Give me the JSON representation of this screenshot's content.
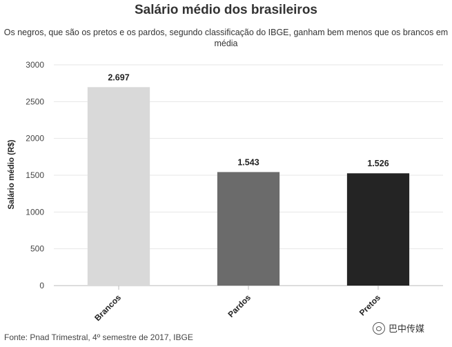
{
  "chart_data": {
    "type": "bar",
    "title": "Salário médio dos brasileiros",
    "subtitle_lines": [
      "Os negros, que são os pretos e os pardos, segundo classificação do IBGE, ganham bem menos que os brancos em",
      "média"
    ],
    "categories": [
      "Brancos",
      "Pardos",
      "Pretos"
    ],
    "values": [
      2697,
      1543,
      1526
    ],
    "value_labels": [
      "2.697",
      "1.543",
      "1.526"
    ],
    "colors": [
      "#d9d9d9",
      "#6b6b6b",
      "#242424"
    ],
    "xlabel": "",
    "ylabel": "Salário médio (R$)",
    "ylim": [
      0,
      3000
    ],
    "yticks": [
      "0",
      "500",
      "1000",
      "1500",
      "2000",
      "2500",
      "3000"
    ],
    "grid": true,
    "legend": "none"
  },
  "source": "Fonte: Pnad Trimestral, 4º semestre de 2017, IBGE",
  "watermark": "巴中传媒"
}
